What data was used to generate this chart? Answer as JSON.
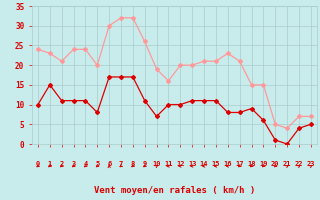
{
  "hours": [
    0,
    1,
    2,
    3,
    4,
    5,
    6,
    7,
    8,
    9,
    10,
    11,
    12,
    13,
    14,
    15,
    16,
    17,
    18,
    19,
    20,
    21,
    22,
    23
  ],
  "wind_avg": [
    10,
    15,
    11,
    11,
    11,
    8,
    17,
    17,
    17,
    11,
    7,
    10,
    10,
    11,
    11,
    11,
    8,
    8,
    9,
    6,
    1,
    0,
    4,
    5
  ],
  "wind_gust": [
    24,
    23,
    21,
    24,
    24,
    20,
    30,
    32,
    32,
    26,
    19,
    16,
    20,
    20,
    21,
    21,
    23,
    21,
    15,
    15,
    5,
    4,
    7,
    7
  ],
  "avg_color": "#dd0000",
  "gust_color": "#ff9999",
  "bg_color": "#c8ecec",
  "grid_color": "#aacccc",
  "xlabel": "Vent moyen/en rafales ( km/h )",
  "xlabel_color": "#dd0000",
  "tick_color": "#dd0000",
  "ylim": [
    0,
    35
  ],
  "yticks": [
    0,
    5,
    10,
    15,
    20,
    25,
    30,
    35
  ],
  "arrow_angles": [
    225,
    225,
    225,
    225,
    225,
    225,
    90,
    225,
    225,
    225,
    45,
    180,
    180,
    180,
    180,
    180,
    180,
    225,
    225,
    225,
    225,
    45,
    45,
    45
  ]
}
